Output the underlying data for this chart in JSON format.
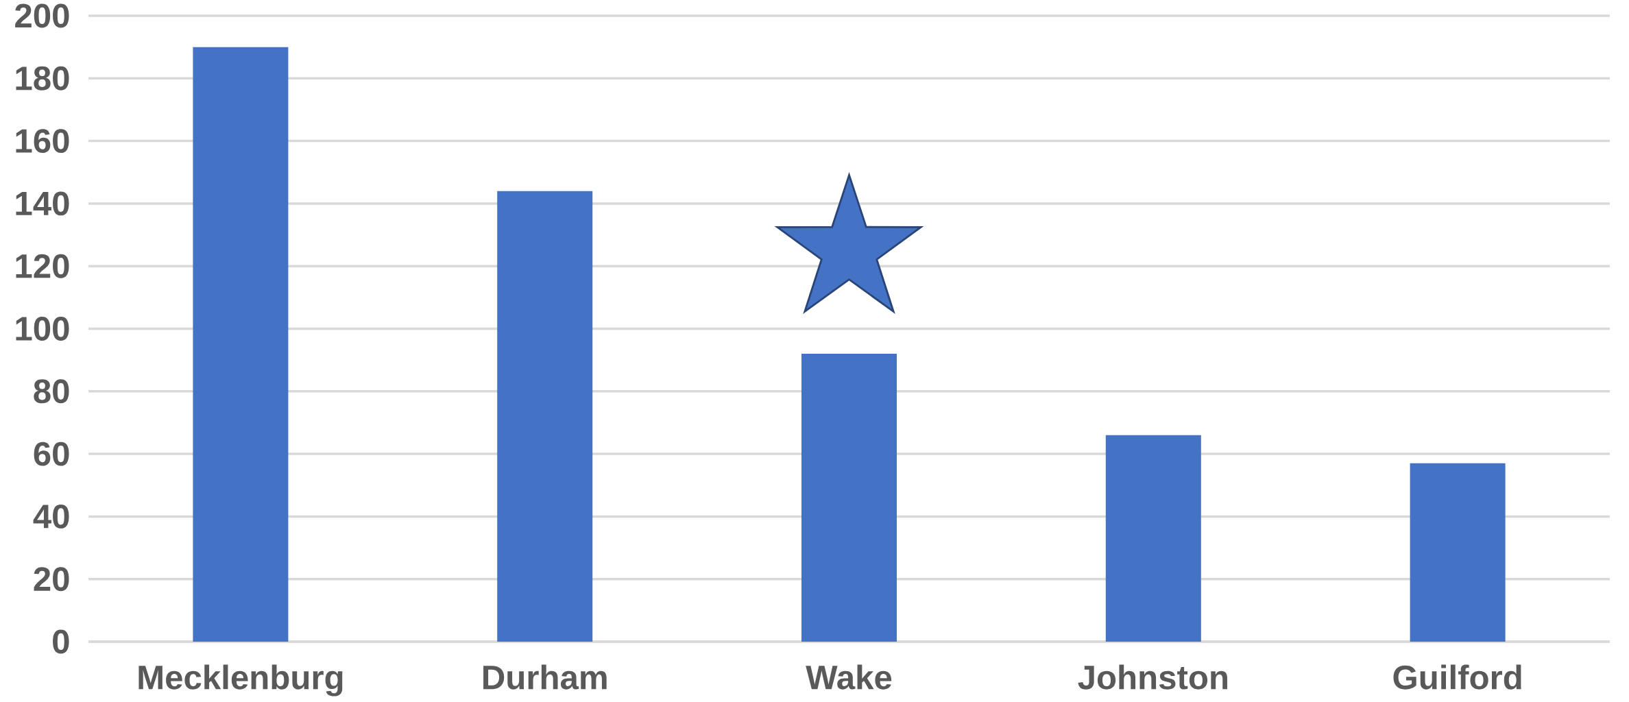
{
  "chart_data": {
    "type": "bar",
    "categories": [
      "Mecklenburg",
      "Durham",
      "Wake",
      "Johnston",
      "Guilford"
    ],
    "values": [
      190,
      144,
      92,
      66,
      57
    ],
    "color": "#4472c4",
    "ylim": [
      0,
      200
    ],
    "yticks": [
      0,
      20,
      40,
      60,
      80,
      100,
      120,
      140,
      160,
      180,
      200
    ],
    "grid": "y"
  }
}
